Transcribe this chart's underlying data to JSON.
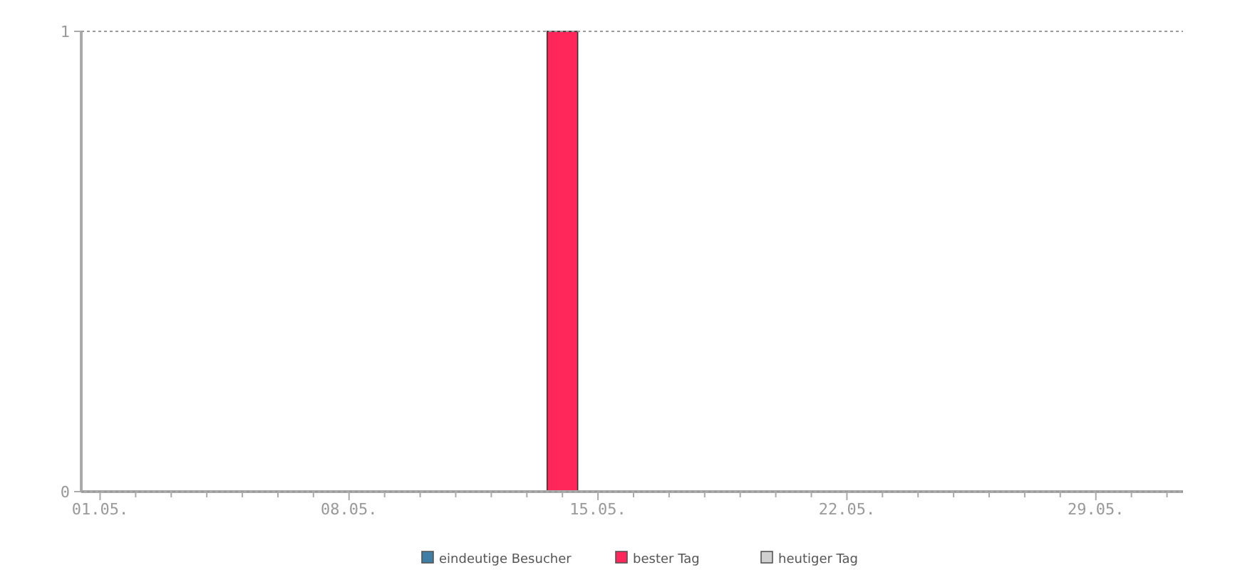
{
  "chart_data": {
    "type": "bar",
    "categories": [
      "01.05.",
      null,
      null,
      null,
      null,
      null,
      null,
      "08.05.",
      null,
      null,
      null,
      null,
      null,
      null,
      "15.05.",
      null,
      null,
      null,
      null,
      null,
      null,
      "22.05.",
      null,
      null,
      null,
      null,
      null,
      null,
      "29.05.",
      null,
      null
    ],
    "series": [
      {
        "name": "eindeutige Besucher",
        "color": "#3f7fa6",
        "values": [
          0,
          0,
          0,
          0,
          0,
          0,
          0,
          0,
          0,
          0,
          0,
          0,
          0,
          null,
          0,
          0,
          0,
          0,
          0,
          0,
          0,
          0,
          0,
          0,
          0,
          0,
          0,
          0,
          0,
          0,
          0
        ]
      },
      {
        "name": "bester Tag",
        "color": "#ff2759",
        "values": [
          null,
          null,
          null,
          null,
          null,
          null,
          null,
          null,
          null,
          null,
          null,
          null,
          null,
          1,
          null,
          null,
          null,
          null,
          null,
          null,
          null,
          null,
          null,
          null,
          null,
          null,
          null,
          null,
          null,
          null,
          null
        ]
      },
      {
        "name": "heutiger Tag",
        "color": "#d0d0d0",
        "values": [
          null,
          null,
          null,
          null,
          null,
          null,
          null,
          null,
          null,
          null,
          null,
          null,
          null,
          null,
          null,
          null,
          null,
          null,
          null,
          null,
          null,
          null,
          null,
          null,
          null,
          null,
          null,
          null,
          null,
          null,
          null
        ]
      }
    ],
    "ylim": [
      0,
      1
    ],
    "yticks": [
      0,
      1
    ],
    "grid": "y",
    "legend": "bottom"
  }
}
